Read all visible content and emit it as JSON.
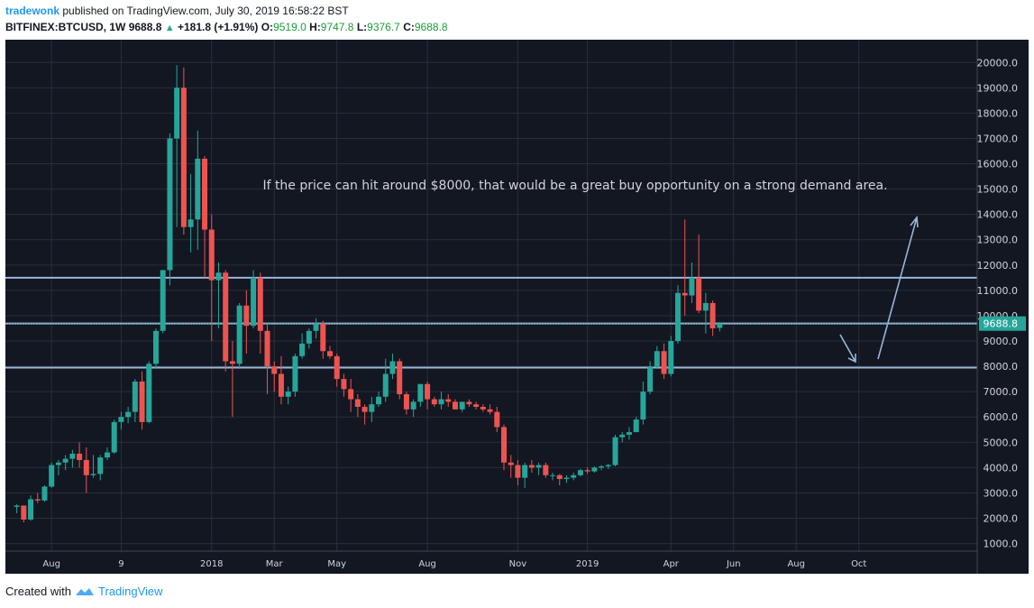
{
  "header": {
    "author": "tradewonk",
    "published_text": "published on TradingView.com, July 30, 2019 16:58:22 BST",
    "symbol": "BITFINEX:BTCUSD, 1W",
    "last": "9688.8",
    "change": "+181.8 (+1.91%)",
    "o_label": "O:",
    "o_value": "9519.0",
    "h_label": "H:",
    "h_value": "9747.8",
    "l_label": "L:",
    "l_value": "9376.7",
    "c_label": "C:",
    "c_value": "9688.8"
  },
  "footer": {
    "created_with": "Created with",
    "brand": "TradingView"
  },
  "colors": {
    "background": "#131722",
    "up": "#26a69a",
    "down": "#ef5350",
    "level_line": "#9ab5d8",
    "grid": "#2a2e39",
    "axis_text": "#d1d4dc"
  },
  "chart_data": {
    "type": "candlestick",
    "title": "BITFINEX:BTCUSD, 1W",
    "annotation": "If the price can hit around $8000, that would be a great buy opportunity on a strong demand area.",
    "ylim": [
      700,
      20900
    ],
    "y_ticks": [
      1000,
      2000,
      3000,
      4000,
      5000,
      6000,
      7000,
      8000,
      9000,
      10000,
      11000,
      12000,
      13000,
      14000,
      15000,
      16000,
      17000,
      18000,
      19000,
      20000
    ],
    "y_tick_labels": [
      "1000.0",
      "2000.0",
      "3000.0",
      "4000.0",
      "5000.0",
      "6000.0",
      "7000.0",
      "8000.0",
      "9000.0",
      "10000.0",
      "11000.0",
      "12000.0",
      "13000.0",
      "14000.0",
      "15000.0",
      "16000.0",
      "17000.0",
      "18000.0",
      "19000.0",
      "20000.0"
    ],
    "x_ticks": [
      {
        "label": "Aug",
        "index": 5
      },
      {
        "label": "9",
        "index": 15
      },
      {
        "label": "2018",
        "index": 28
      },
      {
        "label": "Mar",
        "index": 37
      },
      {
        "label": "May",
        "index": 46
      },
      {
        "label": "Aug",
        "index": 59
      },
      {
        "label": "Nov",
        "index": 72
      },
      {
        "label": "2019",
        "index": 82
      },
      {
        "label": "Apr",
        "index": 94
      },
      {
        "label": "Jun",
        "index": 103
      },
      {
        "label": "Aug",
        "index": 112
      },
      {
        "label": "Oct",
        "index": 121
      }
    ],
    "horizontal_levels": [
      11500,
      9690,
      7950
    ],
    "last_price": 9688.8,
    "last_price_label": "9688.8",
    "candles": [
      [
        2450,
        2550,
        2200,
        2500
      ],
      [
        2500,
        2500,
        1840,
        1950
      ],
      [
        1950,
        2900,
        1900,
        2750
      ],
      [
        2750,
        3000,
        2600,
        2700
      ],
      [
        2700,
        3300,
        2650,
        3250
      ],
      [
        3250,
        4200,
        3200,
        4100
      ],
      [
        4100,
        4300,
        3700,
        4200
      ],
      [
        4200,
        4500,
        3900,
        4350
      ],
      [
        4350,
        4700,
        4000,
        4550
      ],
      [
        4550,
        5000,
        4000,
        4300
      ],
      [
        4300,
        4800,
        3000,
        3700
      ],
      [
        3700,
        4500,
        3600,
        3750
      ],
      [
        3750,
        4500,
        3500,
        4400
      ],
      [
        4400,
        4800,
        4300,
        4600
      ],
      [
        4600,
        5900,
        4550,
        5800
      ],
      [
        5800,
        6200,
        5500,
        6000
      ],
      [
        6000,
        6400,
        5750,
        6200
      ],
      [
        6200,
        7500,
        5800,
        7400
      ],
      [
        7400,
        7800,
        5500,
        5800
      ],
      [
        5800,
        8200,
        5750,
        8100
      ],
      [
        8100,
        9500,
        7900,
        9400
      ],
      [
        9400,
        11800,
        9300,
        11800
      ],
      [
        11800,
        17200,
        11200,
        17000
      ],
      [
        17000,
        19900,
        13500,
        19000
      ],
      [
        19000,
        19800,
        13200,
        13500
      ],
      [
        13500,
        15600,
        12500,
        13800
      ],
      [
        13800,
        17300,
        12600,
        16200
      ],
      [
        16200,
        16300,
        11500,
        13400
      ],
      [
        13400,
        14000,
        9000,
        11400
      ],
      [
        11400,
        12100,
        9500,
        11700
      ],
      [
        11700,
        11800,
        7800,
        8200
      ],
      [
        8200,
        9000,
        6000,
        8100
      ],
      [
        8100,
        10500,
        7900,
        10400
      ],
      [
        10400,
        11000,
        8500,
        9600
      ],
      [
        9600,
        11800,
        9500,
        11500
      ],
      [
        11500,
        11700,
        8500,
        9400
      ],
      [
        9400,
        9700,
        6900,
        8000
      ],
      [
        8000,
        8200,
        7000,
        7700
      ],
      [
        7700,
        8400,
        6500,
        6800
      ],
      [
        6800,
        7200,
        6500,
        7000
      ],
      [
        7000,
        8500,
        6800,
        8400
      ],
      [
        8400,
        9300,
        8300,
        8900
      ],
      [
        8900,
        9500,
        8700,
        9400
      ],
      [
        9400,
        9900,
        9100,
        9700
      ],
      [
        9700,
        9800,
        8300,
        8600
      ],
      [
        8600,
        8800,
        8300,
        8400
      ],
      [
        8400,
        8500,
        7200,
        7500
      ],
      [
        7500,
        7700,
        6800,
        7100
      ],
      [
        7100,
        7500,
        6200,
        6700
      ],
      [
        6700,
        6900,
        6000,
        6400
      ],
      [
        6400,
        6500,
        5700,
        6200
      ],
      [
        6200,
        6800,
        5800,
        6500
      ],
      [
        6500,
        7000,
        6400,
        6800
      ],
      [
        6800,
        8300,
        6600,
        7700
      ],
      [
        7700,
        8500,
        7500,
        8200
      ],
      [
        8200,
        8300,
        6700,
        6900
      ],
      [
        6900,
        7000,
        6100,
        6300
      ],
      [
        6300,
        6700,
        6000,
        6600
      ],
      [
        6600,
        7300,
        6400,
        7300
      ],
      [
        7300,
        7400,
        6300,
        6700
      ],
      [
        6700,
        6800,
        6400,
        6500
      ],
      [
        6500,
        7000,
        6300,
        6700
      ],
      [
        6700,
        6900,
        6400,
        6600
      ],
      [
        6600,
        6700,
        6300,
        6300
      ],
      [
        6300,
        6600,
        6200,
        6600
      ],
      [
        6600,
        6700,
        6400,
        6500
      ],
      [
        6500,
        6600,
        6300,
        6400
      ],
      [
        6400,
        6500,
        6200,
        6300
      ],
      [
        6300,
        6500,
        6100,
        6200
      ],
      [
        6200,
        6400,
        5400,
        5600
      ],
      [
        5600,
        5700,
        3900,
        4200
      ],
      [
        4200,
        4500,
        3600,
        4100
      ],
      [
        4100,
        4300,
        3300,
        3600
      ],
      [
        3600,
        4200,
        3200,
        4100
      ],
      [
        4100,
        4300,
        3800,
        4000
      ],
      [
        4000,
        4200,
        3700,
        4100
      ],
      [
        4100,
        4200,
        3600,
        3700
      ],
      [
        3700,
        3800,
        3500,
        3700
      ],
      [
        3700,
        3750,
        3300,
        3550
      ],
      [
        3550,
        3700,
        3400,
        3600
      ],
      [
        3600,
        3800,
        3500,
        3700
      ],
      [
        3700,
        3950,
        3650,
        3900
      ],
      [
        3900,
        4000,
        3750,
        3850
      ],
      [
        3850,
        4050,
        3800,
        4000
      ],
      [
        4000,
        4100,
        3900,
        4050
      ],
      [
        4050,
        4150,
        3950,
        4100
      ],
      [
        4100,
        5300,
        4050,
        5200
      ],
      [
        5200,
        5400,
        5000,
        5300
      ],
      [
        5300,
        5600,
        5100,
        5400
      ],
      [
        5400,
        6000,
        5400,
        5900
      ],
      [
        5900,
        7400,
        5700,
        7000
      ],
      [
        7000,
        8200,
        6900,
        8000
      ],
      [
        8000,
        8800,
        7900,
        8600
      ],
      [
        8600,
        8900,
        7500,
        7700
      ],
      [
        7700,
        9200,
        7600,
        9000
      ],
      [
        9000,
        11200,
        8900,
        10900
      ],
      [
        10900,
        13800,
        10000,
        10800
      ],
      [
        10800,
        12100,
        10500,
        11500
      ],
      [
        11500,
        13200,
        10100,
        10200
      ],
      [
        10200,
        10900,
        9300,
        10500
      ],
      [
        10500,
        10600,
        9200,
        9500
      ],
      [
        9519,
        9748,
        9377,
        9689
      ]
    ]
  }
}
